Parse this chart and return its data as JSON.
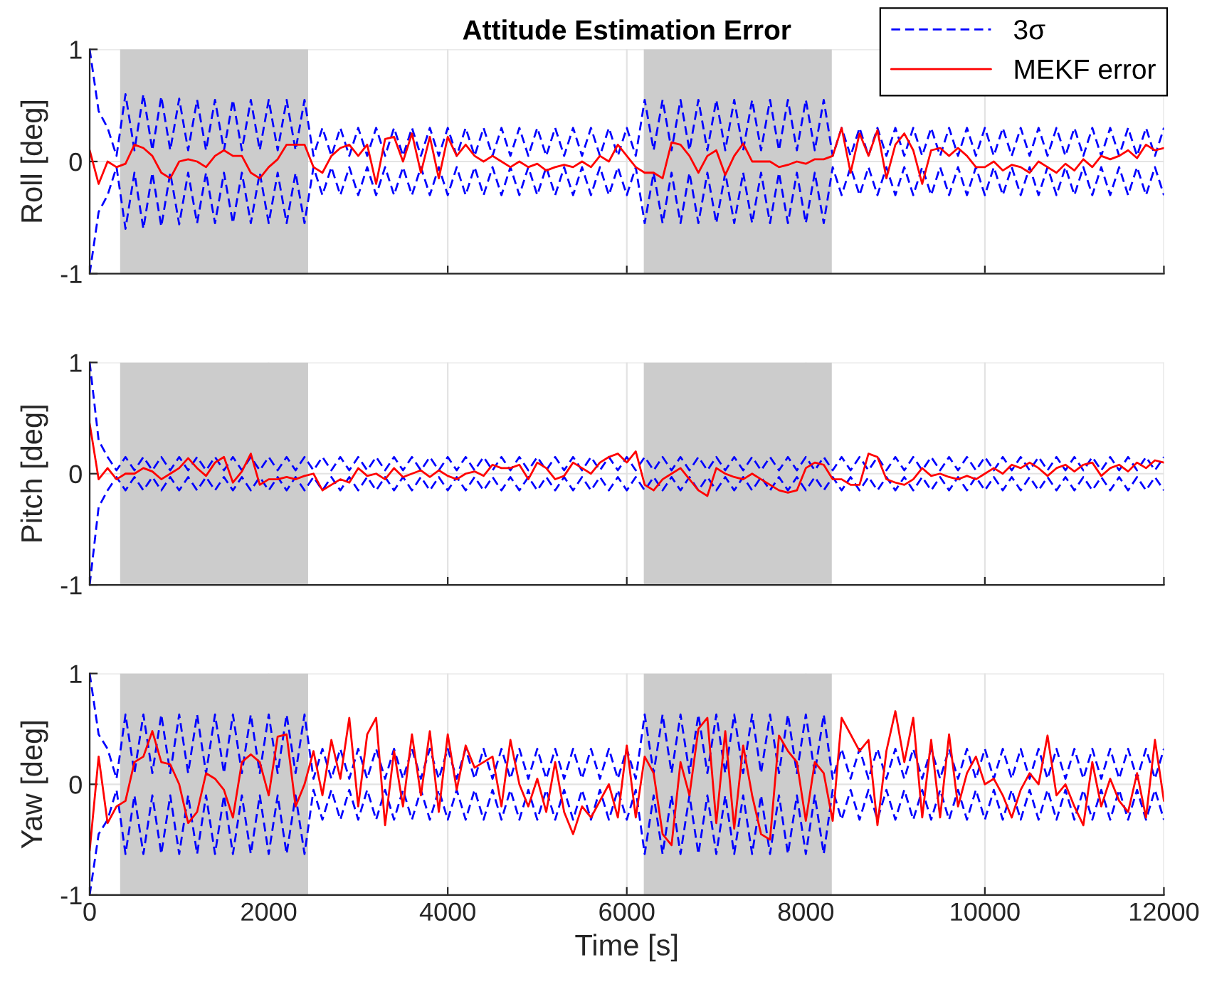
{
  "chart_data": [
    {
      "type": "line",
      "title": "Attitude Estimation Error",
      "ylabel": "Roll [deg]",
      "xlim": [
        0,
        12000
      ],
      "xticks": [
        0,
        2000,
        4000,
        6000,
        8000,
        10000,
        12000
      ],
      "ylim": [
        -1,
        1
      ],
      "yticks": [
        -1,
        0,
        1
      ],
      "grid": true,
      "legend": "top right",
      "tick_labels": "y",
      "bands": [
        {
          "axis": "x",
          "from": 340,
          "to": 2440,
          "color": "#cccccc"
        },
        {
          "axis": "x",
          "from": 6190,
          "to": 8290,
          "color": "#cccccc"
        }
      ],
      "x": [
        0,
        100,
        200,
        300,
        400,
        500,
        600,
        700,
        800,
        900,
        1000,
        1100,
        1200,
        1300,
        1400,
        1500,
        1600,
        1700,
        1800,
        1900,
        2000,
        2100,
        2200,
        2300,
        2400,
        2500,
        2600,
        2700,
        2800,
        2900,
        3000,
        3100,
        3200,
        3300,
        3400,
        3500,
        3600,
        3700,
        3800,
        3900,
        4000,
        4100,
        4200,
        4300,
        4400,
        4500,
        4600,
        4700,
        4800,
        4900,
        5000,
        5100,
        5200,
        5300,
        5400,
        5500,
        5600,
        5700,
        5800,
        5900,
        6000,
        6100,
        6200,
        6300,
        6400,
        6500,
        6600,
        6700,
        6800,
        6900,
        7000,
        7100,
        7200,
        7300,
        7400,
        7500,
        7600,
        7700,
        7800,
        7900,
        8000,
        8100,
        8200,
        8300,
        8400,
        8500,
        8600,
        8700,
        8800,
        8900,
        9000,
        9100,
        9200,
        9300,
        9400,
        9500,
        9600,
        9700,
        9800,
        9900,
        10000,
        10100,
        10200,
        10300,
        10400,
        10500,
        10600,
        10700,
        10800,
        10900,
        11000,
        11100,
        11200,
        11300,
        11400,
        11500,
        11600,
        11700,
        11800,
        11900,
        12000
      ],
      "series": [
        {
          "name": "3σ",
          "color": "#0000ff",
          "line_style": "dashed",
          "values": [
            1.0,
            0.45,
            0.3,
            0.05,
            0.6,
            0.1,
            0.6,
            0.1,
            0.58,
            0.1,
            0.56,
            0.1,
            0.55,
            0.1,
            0.55,
            0.1,
            0.55,
            0.1,
            0.55,
            0.1,
            0.55,
            0.1,
            0.55,
            0.1,
            0.55,
            0.05,
            0.3,
            0.05,
            0.3,
            0.05,
            0.3,
            0.05,
            0.3,
            0.05,
            0.3,
            0.05,
            0.3,
            0.05,
            0.3,
            0.05,
            0.3,
            0.05,
            0.3,
            0.05,
            0.3,
            0.05,
            0.3,
            0.05,
            0.3,
            0.05,
            0.3,
            0.05,
            0.3,
            0.05,
            0.3,
            0.05,
            0.3,
            0.05,
            0.3,
            0.05,
            0.3,
            0.05,
            0.55,
            0.1,
            0.55,
            0.1,
            0.55,
            0.1,
            0.55,
            0.1,
            0.55,
            0.1,
            0.55,
            0.1,
            0.55,
            0.1,
            0.55,
            0.1,
            0.55,
            0.1,
            0.55,
            0.1,
            0.55,
            0.05,
            0.3,
            0.05,
            0.3,
            0.05,
            0.3,
            0.05,
            0.3,
            0.05,
            0.3,
            0.05,
            0.3,
            0.05,
            0.3,
            0.05,
            0.3,
            0.05,
            0.3,
            0.05,
            0.3,
            0.05,
            0.3,
            0.05,
            0.3,
            0.05,
            0.3,
            0.05,
            0.3,
            0.05,
            0.3,
            0.05,
            0.3,
            0.05,
            0.3,
            0.05,
            0.3,
            0.05,
            0.3
          ]
        },
        {
          "color": "#0000ff",
          "line_style": "dashed",
          "values": [
            -1.0,
            -0.45,
            -0.3,
            -0.05,
            -0.6,
            -0.1,
            -0.6,
            -0.1,
            -0.58,
            -0.1,
            -0.56,
            -0.1,
            -0.55,
            -0.1,
            -0.55,
            -0.1,
            -0.55,
            -0.1,
            -0.55,
            -0.1,
            -0.55,
            -0.1,
            -0.55,
            -0.1,
            -0.55,
            -0.05,
            -0.3,
            -0.05,
            -0.3,
            -0.05,
            -0.3,
            -0.05,
            -0.3,
            -0.05,
            -0.3,
            -0.05,
            -0.3,
            -0.05,
            -0.3,
            -0.05,
            -0.3,
            -0.05,
            -0.3,
            -0.05,
            -0.3,
            -0.05,
            -0.3,
            -0.05,
            -0.3,
            -0.05,
            -0.3,
            -0.05,
            -0.3,
            -0.05,
            -0.3,
            -0.05,
            -0.3,
            -0.05,
            -0.3,
            -0.05,
            -0.3,
            -0.05,
            -0.55,
            -0.1,
            -0.55,
            -0.1,
            -0.55,
            -0.1,
            -0.55,
            -0.1,
            -0.55,
            -0.1,
            -0.55,
            -0.1,
            -0.55,
            -0.1,
            -0.55,
            -0.1,
            -0.55,
            -0.1,
            -0.55,
            -0.1,
            -0.55,
            -0.05,
            -0.3,
            -0.05,
            -0.3,
            -0.05,
            -0.3,
            -0.05,
            -0.3,
            -0.05,
            -0.3,
            -0.05,
            -0.3,
            -0.05,
            -0.3,
            -0.05,
            -0.3,
            -0.05,
            -0.3,
            -0.05,
            -0.3,
            -0.05,
            -0.3,
            -0.05,
            -0.3,
            -0.05,
            -0.3,
            -0.05,
            -0.3,
            -0.05,
            -0.3,
            -0.05,
            -0.3,
            -0.05,
            -0.3,
            -0.05,
            -0.3,
            -0.05,
            -0.3
          ]
        },
        {
          "name": "MEKF error",
          "color": "#ff0000",
          "line_style": "solid",
          "values": [
            0.1,
            -0.2,
            0.0,
            -0.05,
            -0.02,
            0.15,
            0.12,
            0.05,
            -0.1,
            -0.15,
            0.0,
            0.02,
            0.0,
            -0.05,
            0.05,
            0.1,
            0.05,
            0.05,
            -0.1,
            -0.15,
            -0.05,
            0.02,
            0.15,
            0.15,
            0.15,
            -0.05,
            -0.1,
            0.05,
            0.12,
            0.15,
            0.05,
            0.15,
            -0.2,
            0.2,
            0.22,
            0.0,
            0.25,
            -0.1,
            0.22,
            -0.15,
            0.22,
            0.05,
            0.15,
            0.05,
            0.0,
            0.05,
            0.0,
            -0.05,
            0.0,
            -0.05,
            -0.02,
            -0.08,
            -0.05,
            -0.03,
            -0.05,
            0.0,
            -0.05,
            0.05,
            0.0,
            0.15,
            0.05,
            -0.05,
            -0.1,
            -0.1,
            -0.15,
            0.17,
            0.15,
            0.05,
            -0.1,
            0.05,
            0.1,
            -0.12,
            0.05,
            0.16,
            0.0,
            0.0,
            0.0,
            -0.05,
            -0.03,
            0.0,
            -0.02,
            0.02,
            0.02,
            0.05,
            0.3,
            -0.1,
            0.25,
            0.05,
            0.28,
            -0.15,
            0.15,
            0.25,
            0.1,
            -0.2,
            0.1,
            0.12,
            0.05,
            0.12,
            0.05,
            -0.05,
            -0.05,
            0.0,
            -0.08,
            -0.03,
            -0.05,
            -0.1,
            0.0,
            -0.05,
            -0.1,
            -0.02,
            -0.08,
            0.02,
            -0.05,
            0.05,
            0.02,
            0.05,
            0.1,
            0.03,
            0.15,
            0.1,
            0.12
          ]
        }
      ]
    },
    {
      "type": "line",
      "ylabel": "Pitch [deg]",
      "xlim": [
        0,
        12000
      ],
      "xticks": [
        0,
        2000,
        4000,
        6000,
        8000,
        10000,
        12000
      ],
      "ylim": [
        -1,
        1
      ],
      "yticks": [
        -1,
        0,
        1
      ],
      "grid": true,
      "tick_labels": "y",
      "bands": [
        {
          "axis": "x",
          "from": 340,
          "to": 2440,
          "color": "#cccccc"
        },
        {
          "axis": "x",
          "from": 6190,
          "to": 8290,
          "color": "#cccccc"
        }
      ],
      "x": [
        0,
        100,
        200,
        300,
        400,
        500,
        600,
        700,
        800,
        900,
        1000,
        1100,
        1200,
        1300,
        1400,
        1500,
        1600,
        1700,
        1800,
        1900,
        2000,
        2100,
        2200,
        2300,
        2400,
        2500,
        2600,
        2700,
        2800,
        2900,
        3000,
        3100,
        3200,
        3300,
        3400,
        3500,
        3600,
        3700,
        3800,
        3900,
        4000,
        4100,
        4200,
        4300,
        4400,
        4500,
        4600,
        4700,
        4800,
        4900,
        5000,
        5100,
        5200,
        5300,
        5400,
        5500,
        5600,
        5700,
        5800,
        5900,
        6000,
        6100,
        6200,
        6300,
        6400,
        6500,
        6600,
        6700,
        6800,
        6900,
        7000,
        7100,
        7200,
        7300,
        7400,
        7500,
        7600,
        7700,
        7800,
        7900,
        8000,
        8100,
        8200,
        8300,
        8400,
        8500,
        8600,
        8700,
        8800,
        8900,
        9000,
        9100,
        9200,
        9300,
        9400,
        9500,
        9600,
        9700,
        9800,
        9900,
        10000,
        10100,
        10200,
        10300,
        10400,
        10500,
        10600,
        10700,
        10800,
        10900,
        11000,
        11100,
        11200,
        11300,
        11400,
        11500,
        11600,
        11700,
        11800,
        11900,
        12000
      ],
      "series": [
        {
          "color": "#0000ff",
          "line_style": "dashed",
          "values": [
            1.0,
            0.3,
            0.15,
            0.03,
            0.15,
            0.03,
            0.15,
            0.03,
            0.15,
            0.03,
            0.15,
            0.03,
            0.15,
            0.03,
            0.15,
            0.03,
            0.15,
            0.03,
            0.15,
            0.03,
            0.15,
            0.03,
            0.15,
            0.03,
            0.15,
            0.03,
            0.15,
            0.03,
            0.15,
            0.03,
            0.15,
            0.03,
            0.15,
            0.03,
            0.15,
            0.03,
            0.15,
            0.03,
            0.15,
            0.03,
            0.15,
            0.03,
            0.15,
            0.03,
            0.15,
            0.03,
            0.15,
            0.03,
            0.15,
            0.03,
            0.15,
            0.03,
            0.15,
            0.03,
            0.15,
            0.03,
            0.15,
            0.03,
            0.15,
            0.03,
            0.15,
            0.03,
            0.15,
            0.03,
            0.15,
            0.03,
            0.15,
            0.03,
            0.15,
            0.03,
            0.15,
            0.03,
            0.15,
            0.03,
            0.15,
            0.03,
            0.15,
            0.03,
            0.15,
            0.03,
            0.15,
            0.03,
            0.15,
            0.03,
            0.15,
            0.03,
            0.15,
            0.03,
            0.15,
            0.03,
            0.15,
            0.03,
            0.15,
            0.03,
            0.15,
            0.03,
            0.15,
            0.03,
            0.15,
            0.03,
            0.15,
            0.03,
            0.15,
            0.03,
            0.15,
            0.03,
            0.15,
            0.03,
            0.15,
            0.03,
            0.15,
            0.03,
            0.15,
            0.03,
            0.15,
            0.03,
            0.15,
            0.03,
            0.15,
            0.03,
            0.15
          ]
        },
        {
          "color": "#0000ff",
          "line_style": "dashed",
          "values": [
            -1.0,
            -0.3,
            -0.15,
            -0.03,
            -0.15,
            -0.03,
            -0.15,
            -0.03,
            -0.15,
            -0.03,
            -0.15,
            -0.03,
            -0.15,
            -0.03,
            -0.15,
            -0.03,
            -0.15,
            -0.03,
            -0.15,
            -0.03,
            -0.15,
            -0.03,
            -0.15,
            -0.03,
            -0.15,
            -0.03,
            -0.15,
            -0.03,
            -0.15,
            -0.03,
            -0.15,
            -0.03,
            -0.15,
            -0.03,
            -0.15,
            -0.03,
            -0.15,
            -0.03,
            -0.15,
            -0.03,
            -0.15,
            -0.03,
            -0.15,
            -0.03,
            -0.15,
            -0.03,
            -0.15,
            -0.03,
            -0.15,
            -0.03,
            -0.15,
            -0.03,
            -0.15,
            -0.03,
            -0.15,
            -0.03,
            -0.15,
            -0.03,
            -0.15,
            -0.03,
            -0.15,
            -0.03,
            -0.15,
            -0.03,
            -0.15,
            -0.03,
            -0.15,
            -0.03,
            -0.15,
            -0.03,
            -0.15,
            -0.03,
            -0.15,
            -0.03,
            -0.15,
            -0.03,
            -0.15,
            -0.03,
            -0.15,
            -0.03,
            -0.15,
            -0.03,
            -0.15,
            -0.03,
            -0.15,
            -0.03,
            -0.15,
            -0.03,
            -0.15,
            -0.03,
            -0.15,
            -0.03,
            -0.15,
            -0.03,
            -0.15,
            -0.03,
            -0.15,
            -0.03,
            -0.15,
            -0.03,
            -0.15,
            -0.03,
            -0.15,
            -0.03,
            -0.15,
            -0.03,
            -0.15,
            -0.03,
            -0.15,
            -0.03,
            -0.15,
            -0.03,
            -0.15,
            -0.03,
            -0.15,
            -0.03,
            -0.15,
            -0.03,
            -0.15,
            -0.03,
            -0.15
          ]
        },
        {
          "color": "#ff0000",
          "line_style": "solid",
          "values": [
            0.45,
            -0.05,
            0.05,
            -0.05,
            0.0,
            0.0,
            0.05,
            0.02,
            -0.05,
            0.0,
            0.05,
            0.14,
            0.05,
            -0.02,
            0.1,
            0.15,
            -0.08,
            0.02,
            0.18,
            -0.1,
            -0.05,
            -0.05,
            -0.03,
            -0.05,
            -0.02,
            0.0,
            -0.15,
            -0.1,
            -0.05,
            -0.08,
            0.05,
            -0.02,
            0.0,
            -0.05,
            0.05,
            -0.03,
            0.0,
            0.03,
            -0.03,
            0.03,
            -0.02,
            -0.05,
            0.0,
            0.02,
            -0.02,
            0.08,
            0.05,
            0.05,
            0.08,
            -0.05,
            0.1,
            0.05,
            -0.05,
            -0.02,
            0.1,
            0.05,
            0.0,
            0.1,
            0.15,
            0.18,
            0.1,
            0.2,
            -0.1,
            -0.15,
            -0.05,
            0.0,
            0.05,
            -0.05,
            -0.15,
            -0.2,
            0.05,
            0.0,
            -0.03,
            -0.05,
            0.0,
            -0.05,
            -0.1,
            -0.15,
            -0.17,
            -0.15,
            0.05,
            0.1,
            0.08,
            -0.05,
            -0.05,
            -0.1,
            -0.1,
            0.18,
            0.15,
            -0.05,
            -0.08,
            -0.1,
            -0.05,
            0.05,
            -0.02,
            0.0,
            -0.03,
            -0.05,
            -0.02,
            -0.05,
            0.0,
            0.05,
            0.0,
            0.08,
            0.05,
            0.1,
            0.05,
            -0.02,
            0.05,
            0.08,
            0.02,
            0.08,
            0.1,
            -0.02,
            0.05,
            0.08,
            0.02,
            0.1,
            0.05,
            0.12,
            0.1
          ]
        }
      ]
    },
    {
      "type": "line",
      "xlabel": "Time [s]",
      "ylabel": "Yaw [deg]",
      "xlim": [
        0,
        12000
      ],
      "xticks": [
        0,
        2000,
        4000,
        6000,
        8000,
        10000,
        12000
      ],
      "ylim": [
        -1,
        1
      ],
      "yticks": [
        -1,
        0,
        1
      ],
      "grid": true,
      "bands": [
        {
          "axis": "x",
          "from": 340,
          "to": 2440,
          "color": "#cccccc"
        },
        {
          "axis": "x",
          "from": 6190,
          "to": 8290,
          "color": "#cccccc"
        }
      ],
      "x": [
        0,
        100,
        200,
        300,
        400,
        500,
        600,
        700,
        800,
        900,
        1000,
        1100,
        1200,
        1300,
        1400,
        1500,
        1600,
        1700,
        1800,
        1900,
        2000,
        2100,
        2200,
        2300,
        2400,
        2500,
        2600,
        2700,
        2800,
        2900,
        3000,
        3100,
        3200,
        3300,
        3400,
        3500,
        3600,
        3700,
        3800,
        3900,
        4000,
        4100,
        4200,
        4300,
        4400,
        4500,
        4600,
        4700,
        4800,
        4900,
        5000,
        5100,
        5200,
        5300,
        5400,
        5500,
        5600,
        5700,
        5800,
        5900,
        6000,
        6100,
        6200,
        6300,
        6400,
        6500,
        6600,
        6700,
        6800,
        6900,
        7000,
        7100,
        7200,
        7300,
        7400,
        7500,
        7600,
        7700,
        7800,
        7900,
        8000,
        8100,
        8200,
        8300,
        8400,
        8500,
        8600,
        8700,
        8800,
        8900,
        9000,
        9100,
        9200,
        9300,
        9400,
        9500,
        9600,
        9700,
        9800,
        9900,
        10000,
        10100,
        10200,
        10300,
        10400,
        10500,
        10600,
        10700,
        10800,
        10900,
        11000,
        11100,
        11200,
        11300,
        11400,
        11500,
        11600,
        11700,
        11800,
        11900,
        12000
      ],
      "series": [
        {
          "color": "#0000ff",
          "line_style": "dashed",
          "values": [
            1.0,
            0.45,
            0.32,
            0.05,
            0.63,
            0.1,
            0.63,
            0.1,
            0.63,
            0.1,
            0.63,
            0.1,
            0.63,
            0.1,
            0.63,
            0.1,
            0.63,
            0.1,
            0.63,
            0.1,
            0.63,
            0.1,
            0.63,
            0.1,
            0.63,
            0.05,
            0.32,
            0.05,
            0.32,
            0.05,
            0.32,
            0.05,
            0.32,
            0.05,
            0.32,
            0.05,
            0.32,
            0.05,
            0.32,
            0.05,
            0.32,
            0.05,
            0.32,
            0.05,
            0.32,
            0.05,
            0.32,
            0.05,
            0.32,
            0.05,
            0.32,
            0.05,
            0.32,
            0.05,
            0.32,
            0.05,
            0.32,
            0.05,
            0.32,
            0.05,
            0.32,
            0.05,
            0.63,
            0.1,
            0.63,
            0.1,
            0.63,
            0.1,
            0.63,
            0.1,
            0.63,
            0.1,
            0.63,
            0.1,
            0.63,
            0.1,
            0.63,
            0.1,
            0.63,
            0.1,
            0.63,
            0.1,
            0.63,
            0.05,
            0.32,
            0.05,
            0.32,
            0.05,
            0.32,
            0.05,
            0.32,
            0.05,
            0.32,
            0.05,
            0.32,
            0.05,
            0.32,
            0.05,
            0.32,
            0.05,
            0.32,
            0.05,
            0.32,
            0.05,
            0.32,
            0.05,
            0.32,
            0.05,
            0.32,
            0.05,
            0.32,
            0.05,
            0.32,
            0.05,
            0.32,
            0.05,
            0.32,
            0.05,
            0.32,
            0.05,
            0.32
          ]
        },
        {
          "color": "#0000ff",
          "line_style": "dashed",
          "values": [
            -1.0,
            -0.45,
            -0.32,
            -0.05,
            -0.63,
            -0.1,
            -0.63,
            -0.1,
            -0.63,
            -0.1,
            -0.63,
            -0.1,
            -0.63,
            -0.1,
            -0.63,
            -0.1,
            -0.63,
            -0.1,
            -0.63,
            -0.1,
            -0.63,
            -0.1,
            -0.63,
            -0.1,
            -0.63,
            -0.05,
            -0.32,
            -0.05,
            -0.32,
            -0.05,
            -0.32,
            -0.05,
            -0.32,
            -0.05,
            -0.32,
            -0.05,
            -0.32,
            -0.05,
            -0.32,
            -0.05,
            -0.32,
            -0.05,
            -0.32,
            -0.05,
            -0.32,
            -0.05,
            -0.32,
            -0.05,
            -0.32,
            -0.05,
            -0.32,
            -0.05,
            -0.32,
            -0.05,
            -0.32,
            -0.05,
            -0.32,
            -0.05,
            -0.32,
            -0.05,
            -0.32,
            -0.05,
            -0.63,
            -0.1,
            -0.63,
            -0.1,
            -0.63,
            -0.1,
            -0.63,
            -0.1,
            -0.63,
            -0.1,
            -0.63,
            -0.1,
            -0.63,
            -0.1,
            -0.63,
            -0.1,
            -0.63,
            -0.1,
            -0.63,
            -0.1,
            -0.63,
            -0.05,
            -0.32,
            -0.05,
            -0.32,
            -0.05,
            -0.32,
            -0.05,
            -0.32,
            -0.05,
            -0.32,
            -0.05,
            -0.32,
            -0.05,
            -0.32,
            -0.05,
            -0.32,
            -0.05,
            -0.32,
            -0.05,
            -0.32,
            -0.05,
            -0.32,
            -0.05,
            -0.32,
            -0.05,
            -0.32,
            -0.05,
            -0.32,
            -0.05,
            -0.32,
            -0.05,
            -0.32,
            -0.05,
            -0.32,
            -0.05,
            -0.32,
            -0.05,
            -0.32
          ]
        },
        {
          "color": "#ff0000",
          "line_style": "solid",
          "values": [
            -0.6,
            0.25,
            -0.35,
            -0.2,
            -0.15,
            0.2,
            0.25,
            0.48,
            0.2,
            0.18,
            0.0,
            -0.35,
            -0.25,
            0.1,
            0.05,
            -0.05,
            -0.3,
            0.2,
            0.27,
            0.2,
            -0.1,
            0.43,
            0.45,
            -0.2,
            0.0,
            0.3,
            -0.1,
            0.4,
            0.05,
            0.6,
            -0.2,
            0.45,
            0.6,
            -0.37,
            0.3,
            -0.2,
            0.45,
            -0.1,
            0.48,
            -0.25,
            0.45,
            -0.05,
            0.35,
            0.15,
            0.2,
            0.25,
            -0.2,
            0.4,
            0.0,
            -0.2,
            0.05,
            -0.25,
            0.2,
            -0.25,
            -0.45,
            -0.2,
            -0.3,
            -0.15,
            0.0,
            -0.3,
            0.35,
            -0.3,
            0.25,
            0.1,
            -0.45,
            -0.55,
            0.2,
            -0.1,
            0.5,
            0.6,
            -0.35,
            0.48,
            -0.4,
            0.35,
            -0.1,
            -0.45,
            -0.5,
            0.44,
            0.3,
            0.2,
            -0.33,
            0.2,
            0.1,
            -0.33,
            0.6,
            0.45,
            0.3,
            0.4,
            -0.37,
            0.3,
            0.66,
            0.2,
            0.6,
            -0.3,
            0.4,
            -0.3,
            0.45,
            -0.2,
            0.1,
            0.25,
            0.0,
            0.05,
            -0.1,
            -0.3,
            -0.05,
            0.1,
            0.0,
            0.44,
            -0.1,
            0.0,
            -0.2,
            -0.37,
            0.2,
            -0.2,
            0.05,
            -0.15,
            -0.25,
            0.1,
            -0.3,
            0.4,
            -0.15
          ]
        }
      ]
    }
  ]
}
